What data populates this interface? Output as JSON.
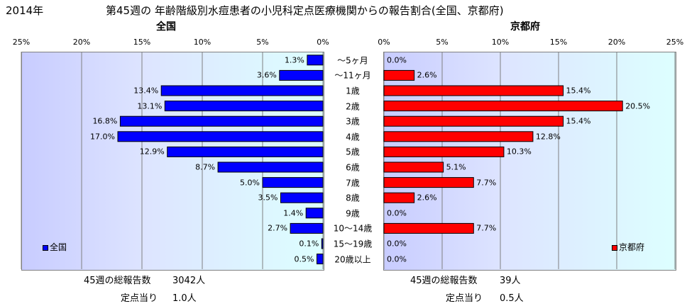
{
  "header": {
    "year": "2014年",
    "title": "第45週の 年齢階級別水痘患者の小児科定点医療機関からの報告割合(全国、京都府)"
  },
  "chart_data": [
    {
      "type": "bar",
      "orientation": "horizontal",
      "direction": "right-to-left",
      "title": "全国",
      "categories": [
        "～5ヶ月",
        "～11ヶ月",
        "1歳",
        "2歳",
        "3歳",
        "4歳",
        "5歳",
        "6歳",
        "7歳",
        "8歳",
        "9歳",
        "10～14歳",
        "15～19歳",
        "20歳以上"
      ],
      "series": [
        {
          "name": "全国",
          "color": "#0000ff",
          "values": [
            1.3,
            3.6,
            13.4,
            13.1,
            16.8,
            17.0,
            12.9,
            8.7,
            5.0,
            3.5,
            1.4,
            2.7,
            0.1,
            0.5
          ]
        }
      ],
      "value_labels": [
        "1.3%",
        "3.6%",
        "13.4%",
        "13.1%",
        "16.8%",
        "17.0%",
        "12.9%",
        "8.7%",
        "5.0%",
        "3.5%",
        "1.4%",
        "2.7%",
        "0.1%",
        "0.5%"
      ],
      "xlim": [
        0,
        25
      ],
      "tick_labels": [
        "25%",
        "20%",
        "15%",
        "10%",
        "5%",
        "0%"
      ],
      "grid": true,
      "legend_position": "bottom-left"
    },
    {
      "type": "bar",
      "orientation": "horizontal",
      "direction": "left-to-right",
      "title": "京都府",
      "categories": [
        "～5ヶ月",
        "～11ヶ月",
        "1歳",
        "2歳",
        "3歳",
        "4歳",
        "5歳",
        "6歳",
        "7歳",
        "8歳",
        "9歳",
        "10～14歳",
        "15～19歳",
        "20歳以上"
      ],
      "series": [
        {
          "name": "京都府",
          "color": "#ff0000",
          "values": [
            0.0,
            2.6,
            15.4,
            20.5,
            15.4,
            12.8,
            10.3,
            5.1,
            7.7,
            2.6,
            0.0,
            7.7,
            0.0,
            0.0
          ]
        }
      ],
      "value_labels": [
        "0.0%",
        "2.6%",
        "15.4%",
        "20.5%",
        "15.4%",
        "12.8%",
        "10.3%",
        "5.1%",
        "7.7%",
        "2.6%",
        "0.0%",
        "7.7%",
        "0.0%",
        "0.0%"
      ],
      "xlim": [
        0,
        25
      ],
      "tick_labels": [
        "0%",
        "5%",
        "10%",
        "15%",
        "20%",
        "25%"
      ],
      "grid": true,
      "legend_position": "bottom-right"
    }
  ],
  "footer": {
    "left_total_label": "45週の総報告数",
    "left_total_value": "3042人",
    "left_per_label": "定点当り",
    "left_per_value": "1.0人",
    "right_total_label": "45週の総報告数",
    "right_total_value": "39人",
    "right_per_label": "定点当り",
    "right_per_value": "0.5人"
  },
  "colors": {
    "national": "#0000ff",
    "kyoto": "#ff0000",
    "bar_edge": "#000000"
  }
}
